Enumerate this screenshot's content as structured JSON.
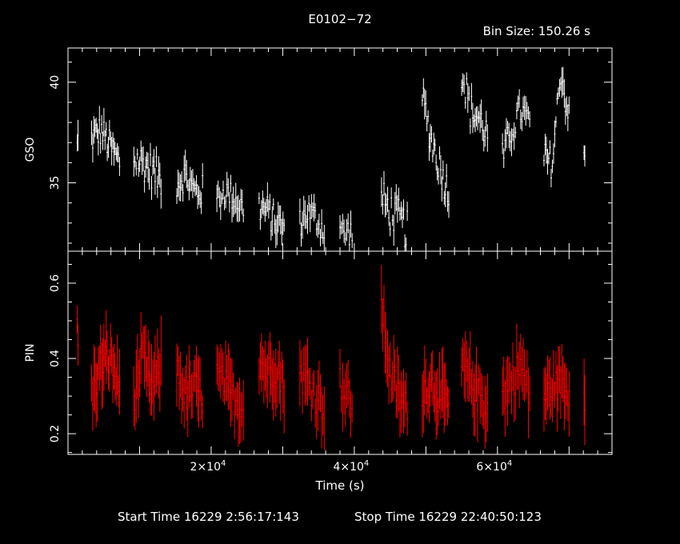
{
  "chart_data": {
    "type": "scatter",
    "title": "E0102−72",
    "bin_size": "Bin Size: 150.26 s",
    "xlabel": "Time (s)",
    "footer": {
      "start": "Start Time 16229  2:56:17:143",
      "stop": "Stop Time 16229 22:40:50:123"
    },
    "xlim": [
      0,
      76000
    ],
    "x_ticks": [
      {
        "value": 20000,
        "mantissa": "2×10",
        "exp": "4"
      },
      {
        "value": 40000,
        "mantissa": "4×10",
        "exp": "4"
      },
      {
        "value": 60000,
        "mantissa": "6×10",
        "exp": "4"
      }
    ],
    "panels": [
      {
        "ylabel": "GSO",
        "color": "#ffffff",
        "ylim": [
          31.6,
          41.7
        ],
        "y_ticks": [
          35,
          40
        ],
        "segments": [
          {
            "x0": 1300,
            "x1": 1400,
            "n": 2,
            "ys": [
              36.8,
              37.2
            ],
            "noise": 0.6
          },
          {
            "x0": 3300,
            "x1": 7200,
            "n": 26,
            "ys": [
              37.2,
              37.6,
              36.8,
              36.0
            ],
            "noise": 0.8
          },
          {
            "x0": 9200,
            "x1": 13000,
            "n": 24,
            "ys": [
              36.2,
              36.0,
              35.6,
              35.2
            ],
            "noise": 0.9
          },
          {
            "x0": 15200,
            "x1": 18800,
            "n": 22,
            "ys": [
              35.0,
              35.4,
              34.6,
              34.6
            ],
            "noise": 0.8
          },
          {
            "x0": 20800,
            "x1": 24500,
            "n": 22,
            "ys": [
              34.2,
              34.6,
              34.2,
              33.7
            ],
            "noise": 0.7
          },
          {
            "x0": 26700,
            "x1": 30200,
            "n": 22,
            "ys": [
              33.8,
              33.6,
              33.0,
              32.8
            ],
            "noise": 0.8
          },
          {
            "x0": 32400,
            "x1": 35800,
            "n": 20,
            "ys": [
              33.0,
              33.6,
              33.2,
              32.6
            ],
            "noise": 0.7
          },
          {
            "x0": 38000,
            "x1": 39700,
            "n": 10,
            "ys": [
              32.8,
              32.4,
              32.6,
              32.5
            ],
            "noise": 0.7
          },
          {
            "x0": 43800,
            "x1": 47400,
            "n": 22,
            "ys": [
              34.2,
              33.6,
              33.2,
              32.6
            ],
            "noise": 1.0
          },
          {
            "x0": 49500,
            "x1": 53200,
            "n": 24,
            "ys": [
              39.2,
              37.2,
              35.8,
              34.4
            ],
            "noise": 0.9
          },
          {
            "x0": 55000,
            "x1": 58600,
            "n": 22,
            "ys": [
              40.6,
              38.6,
              38.2,
              37.4
            ],
            "noise": 0.9
          },
          {
            "x0": 60700,
            "x1": 64500,
            "n": 22,
            "ys": [
              36.2,
              37.6,
              38.6,
              38.0
            ],
            "noise": 0.8
          },
          {
            "x0": 66500,
            "x1": 70000,
            "n": 22,
            "ys": [
              36.2,
              36.0,
              40.6,
              38.2
            ],
            "noise": 0.8
          },
          {
            "x0": 72100,
            "x1": 72200,
            "n": 2,
            "ys": [
              36.4,
              36.2
            ],
            "noise": 0.5
          }
        ]
      },
      {
        "ylabel": "PIN",
        "color": "#ff0000",
        "ylim": [
          0.145,
          0.685
        ],
        "y_ticks": [
          0.2,
          0.4,
          0.6
        ],
        "segments": [
          {
            "x0": 1300,
            "x1": 1400,
            "n": 2,
            "ys": [
              0.5,
              0.45
            ],
            "noise": 0.04
          },
          {
            "x0": 3300,
            "x1": 7200,
            "n": 26,
            "ys": [
              0.3,
              0.38,
              0.4,
              0.32
            ],
            "noise": 0.05
          },
          {
            "x0": 9200,
            "x1": 13000,
            "n": 24,
            "ys": [
              0.3,
              0.4,
              0.32,
              0.38
            ],
            "noise": 0.05
          },
          {
            "x0": 15200,
            "x1": 18800,
            "n": 22,
            "ys": [
              0.38,
              0.3,
              0.32,
              0.3
            ],
            "noise": 0.05
          },
          {
            "x0": 20800,
            "x1": 24500,
            "n": 22,
            "ys": [
              0.36,
              0.33,
              0.29,
              0.27
            ],
            "noise": 0.04
          },
          {
            "x0": 26700,
            "x1": 30200,
            "n": 22,
            "ys": [
              0.4,
              0.36,
              0.38,
              0.32
            ],
            "noise": 0.05
          },
          {
            "x0": 32400,
            "x1": 35800,
            "n": 20,
            "ys": [
              0.36,
              0.34,
              0.3,
              0.28
            ],
            "noise": 0.05
          },
          {
            "x0": 38000,
            "x1": 39700,
            "n": 10,
            "ys": [
              0.34,
              0.3,
              0.3,
              0.27
            ],
            "noise": 0.04
          },
          {
            "x0": 43800,
            "x1": 47400,
            "n": 22,
            "ys": [
              0.54,
              0.36,
              0.3,
              0.26
            ],
            "noise": 0.05
          },
          {
            "x0": 49500,
            "x1": 53200,
            "n": 24,
            "ys": [
              0.32,
              0.34,
              0.3,
              0.27
            ],
            "noise": 0.05
          },
          {
            "x0": 55000,
            "x1": 58600,
            "n": 22,
            "ys": [
              0.37,
              0.34,
              0.3,
              0.28
            ],
            "noise": 0.05
          },
          {
            "x0": 60700,
            "x1": 64500,
            "n": 22,
            "ys": [
              0.3,
              0.34,
              0.38,
              0.3
            ],
            "noise": 0.05
          },
          {
            "x0": 66500,
            "x1": 70000,
            "n": 22,
            "ys": [
              0.3,
              0.32,
              0.34,
              0.3
            ],
            "noise": 0.04
          },
          {
            "x0": 72100,
            "x1": 72200,
            "n": 2,
            "ys": [
              0.32,
              0.3
            ],
            "noise": 0.04
          }
        ]
      }
    ]
  }
}
